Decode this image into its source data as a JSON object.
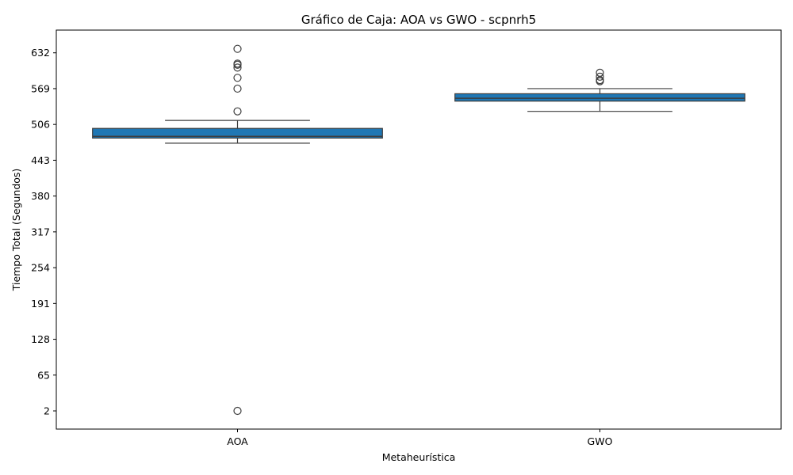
{
  "chart_data": {
    "type": "box",
    "title": "Gráfico de Caja: AOA vs GWO - scpnrh5",
    "xlabel": "Metaheurística",
    "ylabel": "Tiempo Total (Segundos)",
    "categories": [
      "AOA",
      "GWO"
    ],
    "ylim": [
      -30,
      672
    ],
    "yticks": [
      2,
      65,
      128,
      191,
      254,
      317,
      380,
      443,
      506,
      569,
      632
    ],
    "box_color": "#1f77b4",
    "edge_color": "#3d3d3d",
    "boxes": [
      {
        "name": "AOA",
        "whisker_low": 473,
        "q1": 482,
        "median": 485,
        "q3": 499,
        "whisker_high": 513,
        "outliers": [
          2,
          529,
          569,
          588,
          606,
          611,
          613,
          639
        ]
      },
      {
        "name": "GWO",
        "whisker_low": 529,
        "q1": 547,
        "median": 552,
        "q3": 560,
        "whisker_high": 569,
        "outliers": [
          582,
          584,
          590,
          597
        ]
      }
    ]
  }
}
